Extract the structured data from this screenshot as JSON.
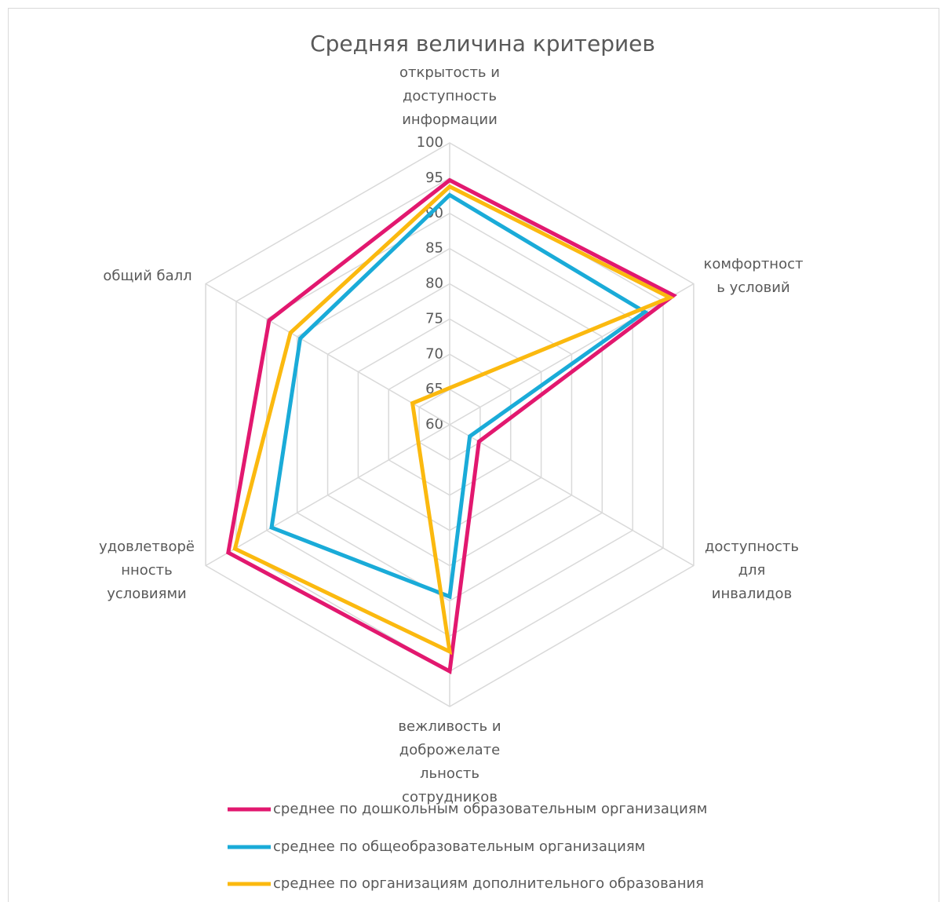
{
  "chart_data": {
    "type": "radar",
    "title": "Средняя величина критериев",
    "categories": [
      "открытость и\nдоступность\nинформации",
      "комфортност\nь условий",
      "доступность\nдля\nинвалидов",
      "вежливость и\nдоброжелате\nльность\nсотрудников",
      "удовлетворё\nнность\nусловиями",
      "общий балл"
    ],
    "series": [
      {
        "name": "среднее по дошкольным образовательным организациям",
        "color": "#e2186f",
        "values": [
          94.7,
          96.7,
          64.8,
          95,
          96.3,
          89.6
        ]
      },
      {
        "name": "среднее по общеобразовательным организациям",
        "color": "#1aabd8",
        "values": [
          92.6,
          92,
          63.3,
          84.4,
          89.2,
          84.5
        ]
      },
      {
        "name": "среднее по организациям дополнительного образования",
        "color": "#fbb90f",
        "values": [
          93.8,
          96.1,
          53.9,
          92.2,
          95.2,
          86.1
        ]
      }
    ],
    "ylim": [
      60,
      100
    ],
    "yticks": [
      60,
      65,
      70,
      75,
      80,
      85,
      90,
      95,
      100
    ],
    "grid": true,
    "legend": "bottom"
  }
}
